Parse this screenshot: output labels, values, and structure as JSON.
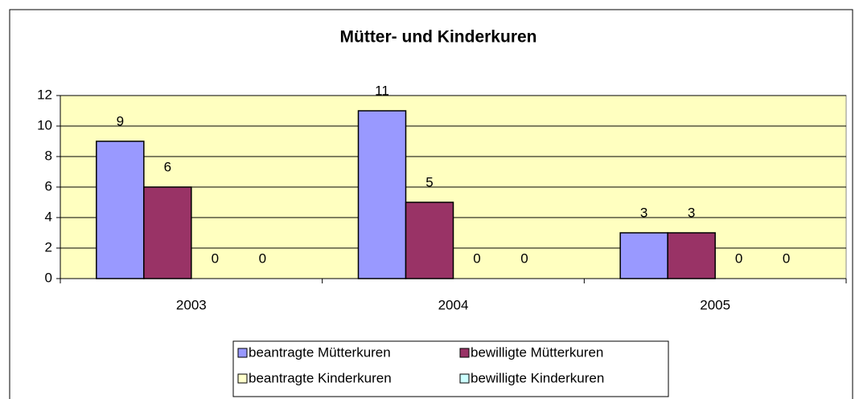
{
  "chart_data": {
    "type": "bar",
    "title": "Mütter- und Kinderkuren",
    "categories": [
      "2003",
      "2004",
      "2005"
    ],
    "series": [
      {
        "name": "beantragte Mütterkuren",
        "color": "#9999ff",
        "values": [
          9,
          11,
          3
        ]
      },
      {
        "name": "bewilligte Mütterkuren",
        "color": "#993366",
        "values": [
          6,
          5,
          3
        ]
      },
      {
        "name": "beantragte Kinderkuren",
        "color": "#ffffcc",
        "values": [
          0,
          0,
          0
        ]
      },
      {
        "name": "bewilligte Kinderkuren",
        "color": "#ccffff",
        "values": [
          0,
          0,
          0
        ]
      }
    ],
    "ylim": [
      0,
      12
    ],
    "yticks": [
      0,
      2,
      4,
      6,
      8,
      10,
      12
    ],
    "grid": true,
    "plot_background": "#ffffc0",
    "legend": "bottom"
  }
}
